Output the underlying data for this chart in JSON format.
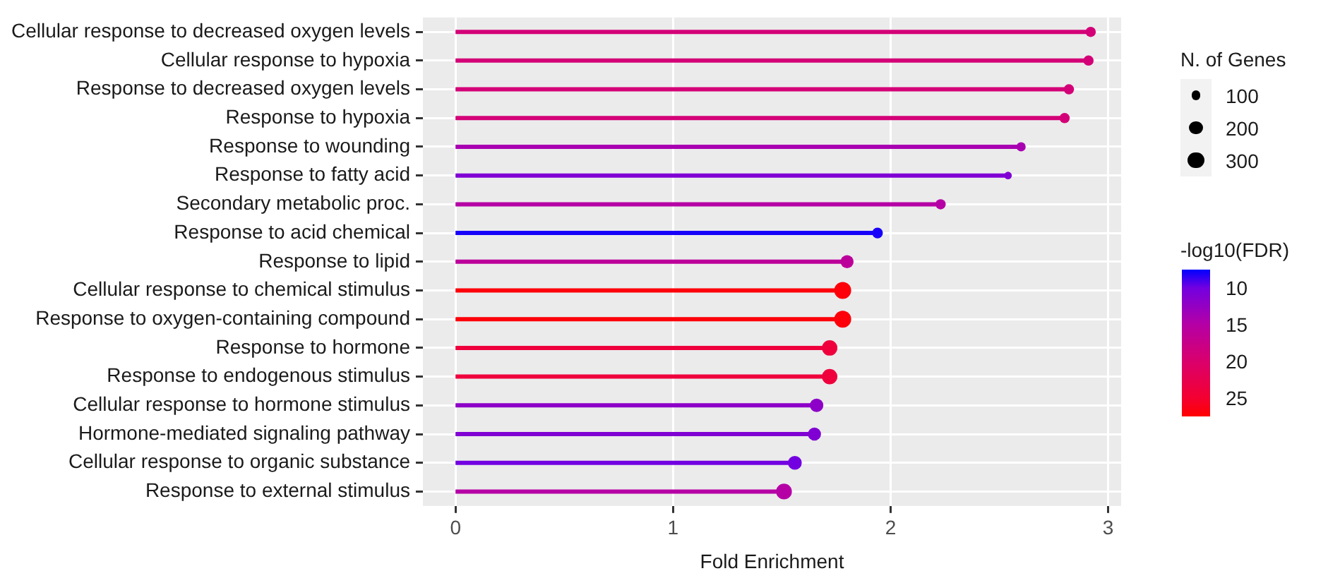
{
  "chart_data": {
    "type": "lollipop",
    "orientation": "horizontal",
    "xlabel": "Fold Enrichment",
    "legend_title": "N. of Genes",
    "clabel": "-log10(FDR)",
    "categories": [
      "Cellular response to decreased oxygen levels",
      "Cellular response to hypoxia",
      "Response to decreased oxygen levels",
      "Response to hypoxia",
      "Response to wounding",
      "Response to fatty acid",
      "Secondary metabolic proc.",
      "Response to acid chemical",
      "Response to lipid",
      "Cellular response to chemical stimulus",
      "Response to oxygen-containing compound",
      "Response to hormone",
      "Response to endogenous stimulus",
      "Cellular response to hormone stimulus",
      "Hormone-mediated signaling pathway",
      "Cellular response to organic substance",
      "Response to external stimulus"
    ],
    "values": [
      2.92,
      2.91,
      2.82,
      2.8,
      2.6,
      2.54,
      2.23,
      1.94,
      1.8,
      1.78,
      1.78,
      1.72,
      1.72,
      1.66,
      1.65,
      1.56,
      1.51
    ],
    "sizes": [
      110,
      110,
      110,
      110,
      90,
      60,
      110,
      120,
      180,
      300,
      300,
      250,
      250,
      190,
      180,
      200,
      260
    ],
    "size_legend": [
      100,
      200,
      300
    ],
    "cvalues": [
      19,
      19,
      19,
      19,
      14,
      11,
      15,
      8,
      16,
      27,
      27,
      24,
      24,
      12,
      11,
      10,
      15
    ],
    "clim": [
      7.5,
      27.5
    ],
    "cticks": [
      10,
      15,
      20,
      25
    ],
    "xlim": [
      -0.15,
      3.06
    ],
    "xticks": [
      0,
      1,
      2,
      3
    ],
    "grid": true
  }
}
